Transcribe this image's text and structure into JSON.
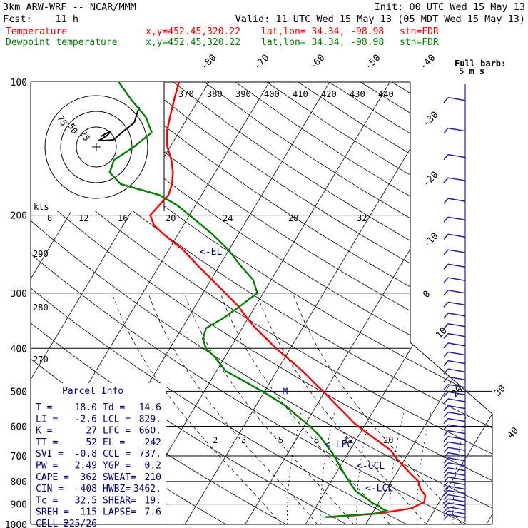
{
  "header": {
    "model": "3km ARW-WRF -- NCAR/MMM",
    "init": "Init: 00 UTC Wed 15 May 13",
    "fcst_label": "Fcst:",
    "fcst_value": "11 h",
    "valid": "Valid: 11 UTC Wed 15 May 13 (05 MDT Wed 15 May 13)",
    "temp_label": "Temperature",
    "dew_label": "Dewpoint temperature",
    "xy": "x,y=452.45,320.22",
    "latlon": "lat,lon= 34.34, -98.98",
    "stn": "stn=FDR"
  },
  "colors": {
    "temperature": "#ff0000",
    "dewpoint": "#008000",
    "header_text": "#000000",
    "annotation": "#00007f",
    "barb": "#2020a0",
    "grid": "#000000",
    "dashed": "#000000"
  },
  "chart_data": {
    "type": "line",
    "ylabel": "",
    "xlabel": "",
    "y_scale": "log (pressure)",
    "ylim": [
      1000,
      100
    ],
    "pressure_ticks": [
      "100",
      "200",
      "300",
      "400",
      "500",
      "600",
      "700",
      "800",
      "900",
      "1000"
    ],
    "isotherm_labels": [
      "-80",
      "-70",
      "-60",
      "-50",
      "-40",
      "-30",
      "-20",
      "-10",
      "0",
      "10",
      "20",
      "30",
      "40"
    ],
    "theta_e_labels": [
      "370",
      "380",
      "390",
      "400",
      "410",
      "420",
      "430",
      "440"
    ],
    "theta_labels": [
      "290",
      "280",
      "270"
    ],
    "mixing_ratio_labels": [
      "2",
      "3",
      "5",
      "8",
      "12",
      "20"
    ],
    "hodograph_axis_labels": [
      "kts",
      "8",
      "12",
      "16",
      "20",
      "24",
      "28",
      "32"
    ],
    "hodograph_ring_labels": [
      "75",
      "50",
      "25"
    ],
    "series": [
      {
        "name": "Temperature",
        "values": [
          [
            963,
            3.5
          ],
          [
            945,
            11
          ],
          [
            920,
            16
          ],
          [
            890,
            17.5
          ],
          [
            860,
            17
          ],
          [
            830,
            15.5
          ],
          [
            800,
            14.5
          ],
          [
            770,
            12.5
          ],
          [
            740,
            10.6
          ],
          [
            710,
            8.6
          ],
          [
            680,
            6.8
          ],
          [
            650,
            4
          ],
          [
            620,
            1
          ],
          [
            590,
            -2
          ],
          [
            560,
            -4.6
          ],
          [
            530,
            -7.4
          ],
          [
            500,
            -10.3
          ],
          [
            480,
            -12.5
          ],
          [
            460,
            -14.6
          ],
          [
            440,
            -17
          ],
          [
            420,
            -19.6
          ],
          [
            400,
            -22.4
          ],
          [
            380,
            -25
          ],
          [
            360,
            -27.8
          ],
          [
            340,
            -30.4
          ],
          [
            320,
            -33
          ],
          [
            300,
            -36.3
          ],
          [
            280,
            -39.8
          ],
          [
            260,
            -43.6
          ],
          [
            240,
            -47.5
          ],
          [
            230,
            -50
          ],
          [
            220,
            -52.6
          ],
          [
            210,
            -55
          ],
          [
            200,
            -56.5
          ],
          [
            190,
            -56
          ],
          [
            180,
            -55.5
          ],
          [
            170,
            -56
          ],
          [
            160,
            -57
          ],
          [
            150,
            -58.5
          ],
          [
            140,
            -60.5
          ],
          [
            130,
            -62
          ],
          [
            120,
            -63
          ],
          [
            110,
            -64
          ],
          [
            100,
            -65
          ]
        ]
      },
      {
        "name": "Dewpoint temperature",
        "values": [
          [
            963,
            2.5
          ],
          [
            945,
            10.5
          ],
          [
            930,
            12
          ],
          [
            920,
            11
          ],
          [
            910,
            10.5
          ],
          [
            895,
            9
          ],
          [
            880,
            8
          ],
          [
            860,
            6.5
          ],
          [
            840,
            5
          ],
          [
            810,
            3.5
          ],
          [
            780,
            2
          ],
          [
            750,
            0.5
          ],
          [
            720,
            -1
          ],
          [
            690,
            -2.6
          ],
          [
            660,
            -4.5
          ],
          [
            630,
            -6.5
          ],
          [
            600,
            -9
          ],
          [
            570,
            -12
          ],
          [
            540,
            -15
          ],
          [
            510,
            -19
          ],
          [
            480,
            -23.5
          ],
          [
            450,
            -28.5
          ],
          [
            420,
            -31.5
          ],
          [
            400,
            -34
          ],
          [
            380,
            -35.5
          ],
          [
            360,
            -36
          ],
          [
            340,
            -34
          ],
          [
            320,
            -32.5
          ],
          [
            300,
            -31
          ],
          [
            280,
            -33
          ],
          [
            260,
            -36.5
          ],
          [
            240,
            -40
          ],
          [
            220,
            -44.5
          ],
          [
            200,
            -50
          ],
          [
            190,
            -53
          ],
          [
            180,
            -57
          ],
          [
            170,
            -64.5
          ],
          [
            160,
            -67.5
          ],
          [
            150,
            -68
          ],
          [
            140,
            -66
          ],
          [
            130,
            -64.5
          ],
          [
            120,
            -67
          ],
          [
            110,
            -71
          ],
          [
            100,
            -75
          ]
        ]
      }
    ],
    "levels": [
      {
        "label": "<-EL",
        "p": 242
      },
      {
        "label": "<-LFC",
        "p": 660
      },
      {
        "label": "<-CCL",
        "p": 737
      },
      {
        "label": "<-LCL",
        "p": 829
      }
    ]
  },
  "barbs_label_1": "Full barb:",
  "barbs_label_2": "5 m s",
  "parcel": {
    "title": "Parcel Info",
    "rows": [
      [
        "T  =",
        "18.0",
        "Td =",
        "14.6"
      ],
      [
        "LI =",
        "-2.6",
        "LCL =",
        "829."
      ],
      [
        "K  =",
        "27",
        "LFC =",
        "660."
      ],
      [
        "TT =",
        "52",
        "EL  =",
        "242"
      ],
      [
        "SVI =",
        "-0.8",
        "CCL =",
        "737."
      ],
      [
        "PW =",
        "2.49",
        "YGP =",
        "0.2"
      ],
      [
        "CAPE =",
        "362",
        "SWEAT=",
        "210"
      ],
      [
        "CIN =",
        "-408",
        "HWBZ=",
        "3462."
      ],
      [
        "Tc =",
        "32.5",
        "SHEAR=",
        "19."
      ],
      [
        "SREH =",
        "115",
        "LAPSE=",
        "7.6"
      ],
      [
        "CELL =",
        "225/26",
        "",
        ""
      ]
    ]
  }
}
